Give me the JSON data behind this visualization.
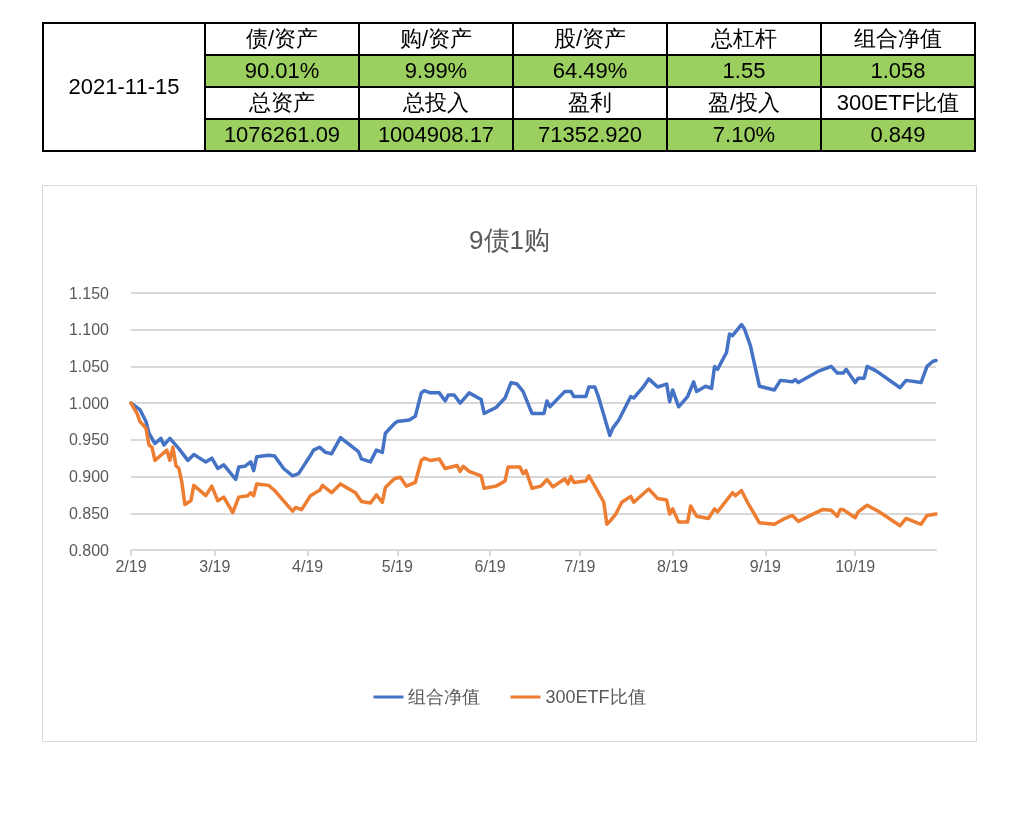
{
  "chart_data": [
    {
      "type": "other",
      "annotations": [
        "2021-11-15",
        "债/资产",
        "购/资产",
        "股/资产",
        "总杠杆",
        "组合净值",
        "90.01%",
        "9.99%",
        "64.49%",
        "1.55",
        "1.058",
        "总资产",
        "总投入",
        "盈利",
        "盈/投入",
        "300ETF比值",
        "1076261.09",
        "1004908.17",
        "71352.920",
        "7.10%",
        "0.849"
      ]
    },
    {
      "type": "line",
      "title": "9债1购",
      "legend": "bottom",
      "grid": "y",
      "marker": "none",
      "line_style": "solid",
      "xlim": [
        "2021-02-19",
        "2021-11-15"
      ],
      "xticks": [
        {
          "value": "2021-02-19",
          "label": "2/19"
        },
        {
          "value": "2021-03-19",
          "label": "3/19"
        },
        {
          "value": "2021-04-19",
          "label": "4/19"
        },
        {
          "value": "2021-05-19",
          "label": "5/19"
        },
        {
          "value": "2021-06-19",
          "label": "6/19"
        },
        {
          "value": "2021-07-19",
          "label": "7/19"
        },
        {
          "value": "2021-08-19",
          "label": "8/19"
        },
        {
          "value": "2021-09-19",
          "label": "9/19"
        },
        {
          "value": "2021-10-19",
          "label": "10/19"
        }
      ],
      "ylim": [
        0.8,
        1.15
      ],
      "yticks": [
        {
          "value": 0.8,
          "label": "0.800"
        },
        {
          "value": 0.85,
          "label": "0.850"
        },
        {
          "value": 0.9,
          "label": "0.900"
        },
        {
          "value": 0.95,
          "label": "0.950"
        },
        {
          "value": 1.0,
          "label": "1.000"
        },
        {
          "value": 1.05,
          "label": "1.050"
        },
        {
          "value": 1.1,
          "label": "1.100"
        },
        {
          "value": 1.15,
          "label": "1.150"
        }
      ],
      "series": [
        {
          "name": "组合净值",
          "color": "#4472c4",
          "x": [
            "2021-02-19",
            "2021-02-22",
            "2021-02-24",
            "2021-02-25",
            "2021-02-27",
            "2021-03-01",
            "2021-03-02",
            "2021-03-04",
            "2021-03-07",
            "2021-03-10",
            "2021-03-12",
            "2021-03-16",
            "2021-03-18",
            "2021-03-20",
            "2021-03-22",
            "2021-03-24",
            "2021-03-26",
            "2021-03-27",
            "2021-03-29",
            "2021-03-31",
            "2021-04-01",
            "2021-04-02",
            "2021-04-06",
            "2021-04-08",
            "2021-04-11",
            "2021-04-14",
            "2021-04-16",
            "2021-04-20",
            "2021-04-21",
            "2021-04-23",
            "2021-04-25",
            "2021-04-27",
            "2021-04-30",
            "2021-05-06",
            "2021-05-07",
            "2021-05-10",
            "2021-05-12",
            "2021-05-14",
            "2021-05-15",
            "2021-05-18",
            "2021-05-19",
            "2021-05-21",
            "2021-05-23",
            "2021-05-25",
            "2021-05-27",
            "2021-05-28",
            "2021-05-30",
            "2021-06-02",
            "2021-06-04",
            "2021-06-05",
            "2021-06-07",
            "2021-06-09",
            "2021-06-12",
            "2021-06-16",
            "2021-06-17",
            "2021-06-21",
            "2021-06-24",
            "2021-06-26",
            "2021-06-28",
            "2021-06-30",
            "2021-07-03",
            "2021-07-07",
            "2021-07-08",
            "2021-07-09",
            "2021-07-14",
            "2021-07-16",
            "2021-07-17",
            "2021-07-21",
            "2021-07-22",
            "2021-07-24",
            "2021-07-25",
            "2021-07-27",
            "2021-07-29",
            "2021-07-30",
            "2021-08-01",
            "2021-08-05",
            "2021-08-06",
            "2021-08-09",
            "2021-08-11",
            "2021-08-14",
            "2021-08-17",
            "2021-08-18",
            "2021-08-19",
            "2021-08-21",
            "2021-08-24",
            "2021-08-26",
            "2021-08-27",
            "2021-08-30",
            "2021-09-01",
            "2021-09-02",
            "2021-09-03",
            "2021-09-06",
            "2021-09-07",
            "2021-09-08",
            "2021-09-11",
            "2021-09-12",
            "2021-09-14",
            "2021-09-17",
            "2021-09-22",
            "2021-09-24",
            "2021-09-28",
            "2021-09-29",
            "2021-09-30",
            "2021-10-07",
            "2021-10-11",
            "2021-10-13",
            "2021-10-15",
            "2021-10-16",
            "2021-10-19",
            "2021-10-20",
            "2021-10-22",
            "2021-10-23",
            "2021-10-26",
            "2021-11-03",
            "2021-11-05",
            "2021-11-10",
            "2021-11-12",
            "2021-11-14",
            "2021-11-15"
          ],
          "values": [
            1.0,
            0.991,
            0.975,
            0.959,
            0.945,
            0.952,
            0.943,
            0.952,
            0.938,
            0.922,
            0.93,
            0.92,
            0.925,
            0.911,
            0.916,
            0.906,
            0.896,
            0.913,
            0.914,
            0.92,
            0.908,
            0.927,
            0.929,
            0.928,
            0.911,
            0.901,
            0.904,
            0.929,
            0.936,
            0.94,
            0.933,
            0.931,
            0.953,
            0.934,
            0.924,
            0.92,
            0.936,
            0.933,
            0.959,
            0.972,
            0.975,
            0.976,
            0.977,
            0.982,
            1.014,
            1.017,
            1.014,
            1.014,
            1.003,
            1.011,
            1.011,
            1.0,
            1.014,
            1.005,
            0.986,
            0.994,
            1.007,
            1.028,
            1.026,
            1.016,
            0.986,
            0.986,
            1.003,
            0.995,
            1.016,
            1.016,
            1.009,
            1.009,
            1.022,
            1.022,
            1.011,
            0.984,
            0.956,
            0.966,
            0.977,
            1.009,
            1.007,
            1.021,
            1.033,
            1.022,
            1.026,
            1.002,
            1.018,
            0.995,
            1.009,
            1.029,
            1.016,
            1.023,
            1.02,
            1.05,
            1.046,
            1.069,
            1.094,
            1.092,
            1.107,
            1.101,
            1.078,
            1.023,
            1.018,
            1.031,
            1.029,
            1.032,
            1.028,
            1.044,
            1.05,
            1.041,
            1.041,
            1.046,
            1.028,
            1.034,
            1.034,
            1.05,
            1.044,
            1.021,
            1.031,
            1.028,
            1.05,
            1.057,
            1.058
          ]
        },
        {
          "name": "300ETF比值",
          "color": "#ed7d31",
          "x": [
            "2021-02-19",
            "2021-02-21",
            "2021-02-22",
            "2021-02-24",
            "2021-02-25",
            "2021-02-26",
            "2021-02-27",
            "2021-03-01",
            "2021-03-03",
            "2021-03-04",
            "2021-03-05",
            "2021-03-06",
            "2021-03-07",
            "2021-03-08",
            "2021-03-09",
            "2021-03-11",
            "2021-03-12",
            "2021-03-16",
            "2021-03-18",
            "2021-03-20",
            "2021-03-22",
            "2021-03-25",
            "2021-03-27",
            "2021-03-30",
            "2021-03-31",
            "2021-04-01",
            "2021-04-02",
            "2021-04-06",
            "2021-04-08",
            "2021-04-11",
            "2021-04-14",
            "2021-04-15",
            "2021-04-17",
            "2021-04-20",
            "2021-04-22",
            "2021-04-23",
            "2021-04-24",
            "2021-04-27",
            "2021-04-30",
            "2021-05-05",
            "2021-05-07",
            "2021-05-10",
            "2021-05-12",
            "2021-05-14",
            "2021-05-15",
            "2021-05-18",
            "2021-05-20",
            "2021-05-22",
            "2021-05-25",
            "2021-05-27",
            "2021-05-28",
            "2021-05-30",
            "2021-06-02",
            "2021-06-04",
            "2021-06-08",
            "2021-06-09",
            "2021-06-10",
            "2021-06-12",
            "2021-06-16",
            "2021-06-17",
            "2021-06-21",
            "2021-06-24",
            "2021-06-25",
            "2021-06-29",
            "2021-06-30",
            "2021-07-01",
            "2021-07-03",
            "2021-07-06",
            "2021-07-08",
            "2021-07-10",
            "2021-07-14",
            "2021-07-15",
            "2021-07-16",
            "2021-07-17",
            "2021-07-21",
            "2021-07-22",
            "2021-07-24",
            "2021-07-27",
            "2021-07-28",
            "2021-07-29",
            "2021-07-31",
            "2021-08-02",
            "2021-08-05",
            "2021-08-06",
            "2021-08-11",
            "2021-08-14",
            "2021-08-17",
            "2021-08-18",
            "2021-08-19",
            "2021-08-21",
            "2021-08-24",
            "2021-08-25",
            "2021-08-27",
            "2021-08-31",
            "2021-09-02",
            "2021-09-03",
            "2021-09-08",
            "2021-09-09",
            "2021-09-11",
            "2021-09-13",
            "2021-09-17",
            "2021-09-22",
            "2021-09-25",
            "2021-09-28",
            "2021-09-30",
            "2021-10-08",
            "2021-10-11",
            "2021-10-13",
            "2021-10-14",
            "2021-10-15",
            "2021-10-19",
            "2021-10-20",
            "2021-10-23",
            "2021-10-27",
            "2021-11-03",
            "2021-11-05",
            "2021-11-10",
            "2021-11-12",
            "2021-11-15"
          ],
          "values": [
            1.0,
            0.986,
            0.975,
            0.966,
            0.943,
            0.94,
            0.922,
            0.929,
            0.936,
            0.922,
            0.94,
            0.915,
            0.911,
            0.892,
            0.862,
            0.867,
            0.888,
            0.874,
            0.887,
            0.867,
            0.872,
            0.851,
            0.872,
            0.874,
            0.878,
            0.874,
            0.89,
            0.888,
            0.881,
            0.867,
            0.853,
            0.858,
            0.855,
            0.874,
            0.879,
            0.881,
            0.888,
            0.878,
            0.89,
            0.878,
            0.866,
            0.864,
            0.875,
            0.865,
            0.885,
            0.897,
            0.899,
            0.887,
            0.892,
            0.922,
            0.925,
            0.922,
            0.924,
            0.911,
            0.915,
            0.907,
            0.914,
            0.907,
            0.901,
            0.884,
            0.887,
            0.894,
            0.913,
            0.913,
            0.904,
            0.908,
            0.884,
            0.887,
            0.896,
            0.886,
            0.897,
            0.89,
            0.9,
            0.892,
            0.894,
            0.901,
            0.887,
            0.865,
            0.835,
            0.839,
            0.849,
            0.865,
            0.873,
            0.865,
            0.883,
            0.87,
            0.868,
            0.849,
            0.856,
            0.838,
            0.838,
            0.86,
            0.846,
            0.843,
            0.856,
            0.852,
            0.878,
            0.874,
            0.881,
            0.865,
            0.837,
            0.835,
            0.842,
            0.847,
            0.839,
            0.855,
            0.854,
            0.846,
            0.855,
            0.855,
            0.844,
            0.852,
            0.861,
            0.852,
            0.833,
            0.843,
            0.835,
            0.847,
            0.849
          ]
        }
      ]
    }
  ]
}
